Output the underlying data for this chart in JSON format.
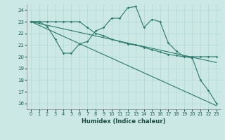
{
  "xlabel": "Humidex (Indice chaleur)",
  "bg_color": "#cce8e4",
  "line_color": "#2a7a6a",
  "xlim": [
    -0.5,
    23.5
  ],
  "ylim": [
    15.5,
    24.5
  ],
  "yticks": [
    16,
    17,
    18,
    19,
    20,
    21,
    22,
    23,
    24
  ],
  "xticks": [
    0,
    1,
    2,
    3,
    4,
    5,
    6,
    7,
    8,
    9,
    10,
    11,
    12,
    13,
    14,
    15,
    16,
    17,
    18,
    19,
    20,
    21,
    22,
    23
  ],
  "line1_x": [
    0,
    1,
    2,
    3,
    4,
    5,
    6,
    7,
    8,
    9,
    10,
    11,
    12,
    13,
    14,
    15,
    16,
    17,
    18,
    19,
    20,
    21,
    22,
    23
  ],
  "line1_y": [
    23.0,
    23.0,
    22.6,
    21.5,
    20.3,
    20.3,
    21.1,
    21.3,
    22.2,
    22.5,
    23.3,
    23.3,
    24.2,
    24.3,
    22.5,
    23.2,
    23.0,
    21.2,
    20.5,
    20.0,
    19.9,
    18.0,
    17.1,
    16.0
  ],
  "line2_x": [
    0,
    1,
    2,
    3,
    4,
    5,
    6,
    7,
    8,
    9,
    10,
    11,
    12,
    13,
    14,
    15,
    16,
    17,
    18,
    19,
    20,
    21,
    22,
    23
  ],
  "line2_y": [
    23.0,
    23.0,
    23.0,
    23.0,
    23.0,
    23.0,
    23.0,
    22.5,
    22.0,
    21.8,
    21.5,
    21.3,
    21.1,
    21.0,
    20.8,
    20.6,
    20.4,
    20.2,
    20.1,
    20.0,
    20.0,
    20.0,
    20.0,
    20.0
  ],
  "line3_x": [
    0,
    23
  ],
  "line3_y": [
    23.0,
    19.5
  ],
  "line4_x": [
    0,
    23
  ],
  "line4_y": [
    23.0,
    15.8
  ],
  "grid_color": "#b0d8d2"
}
